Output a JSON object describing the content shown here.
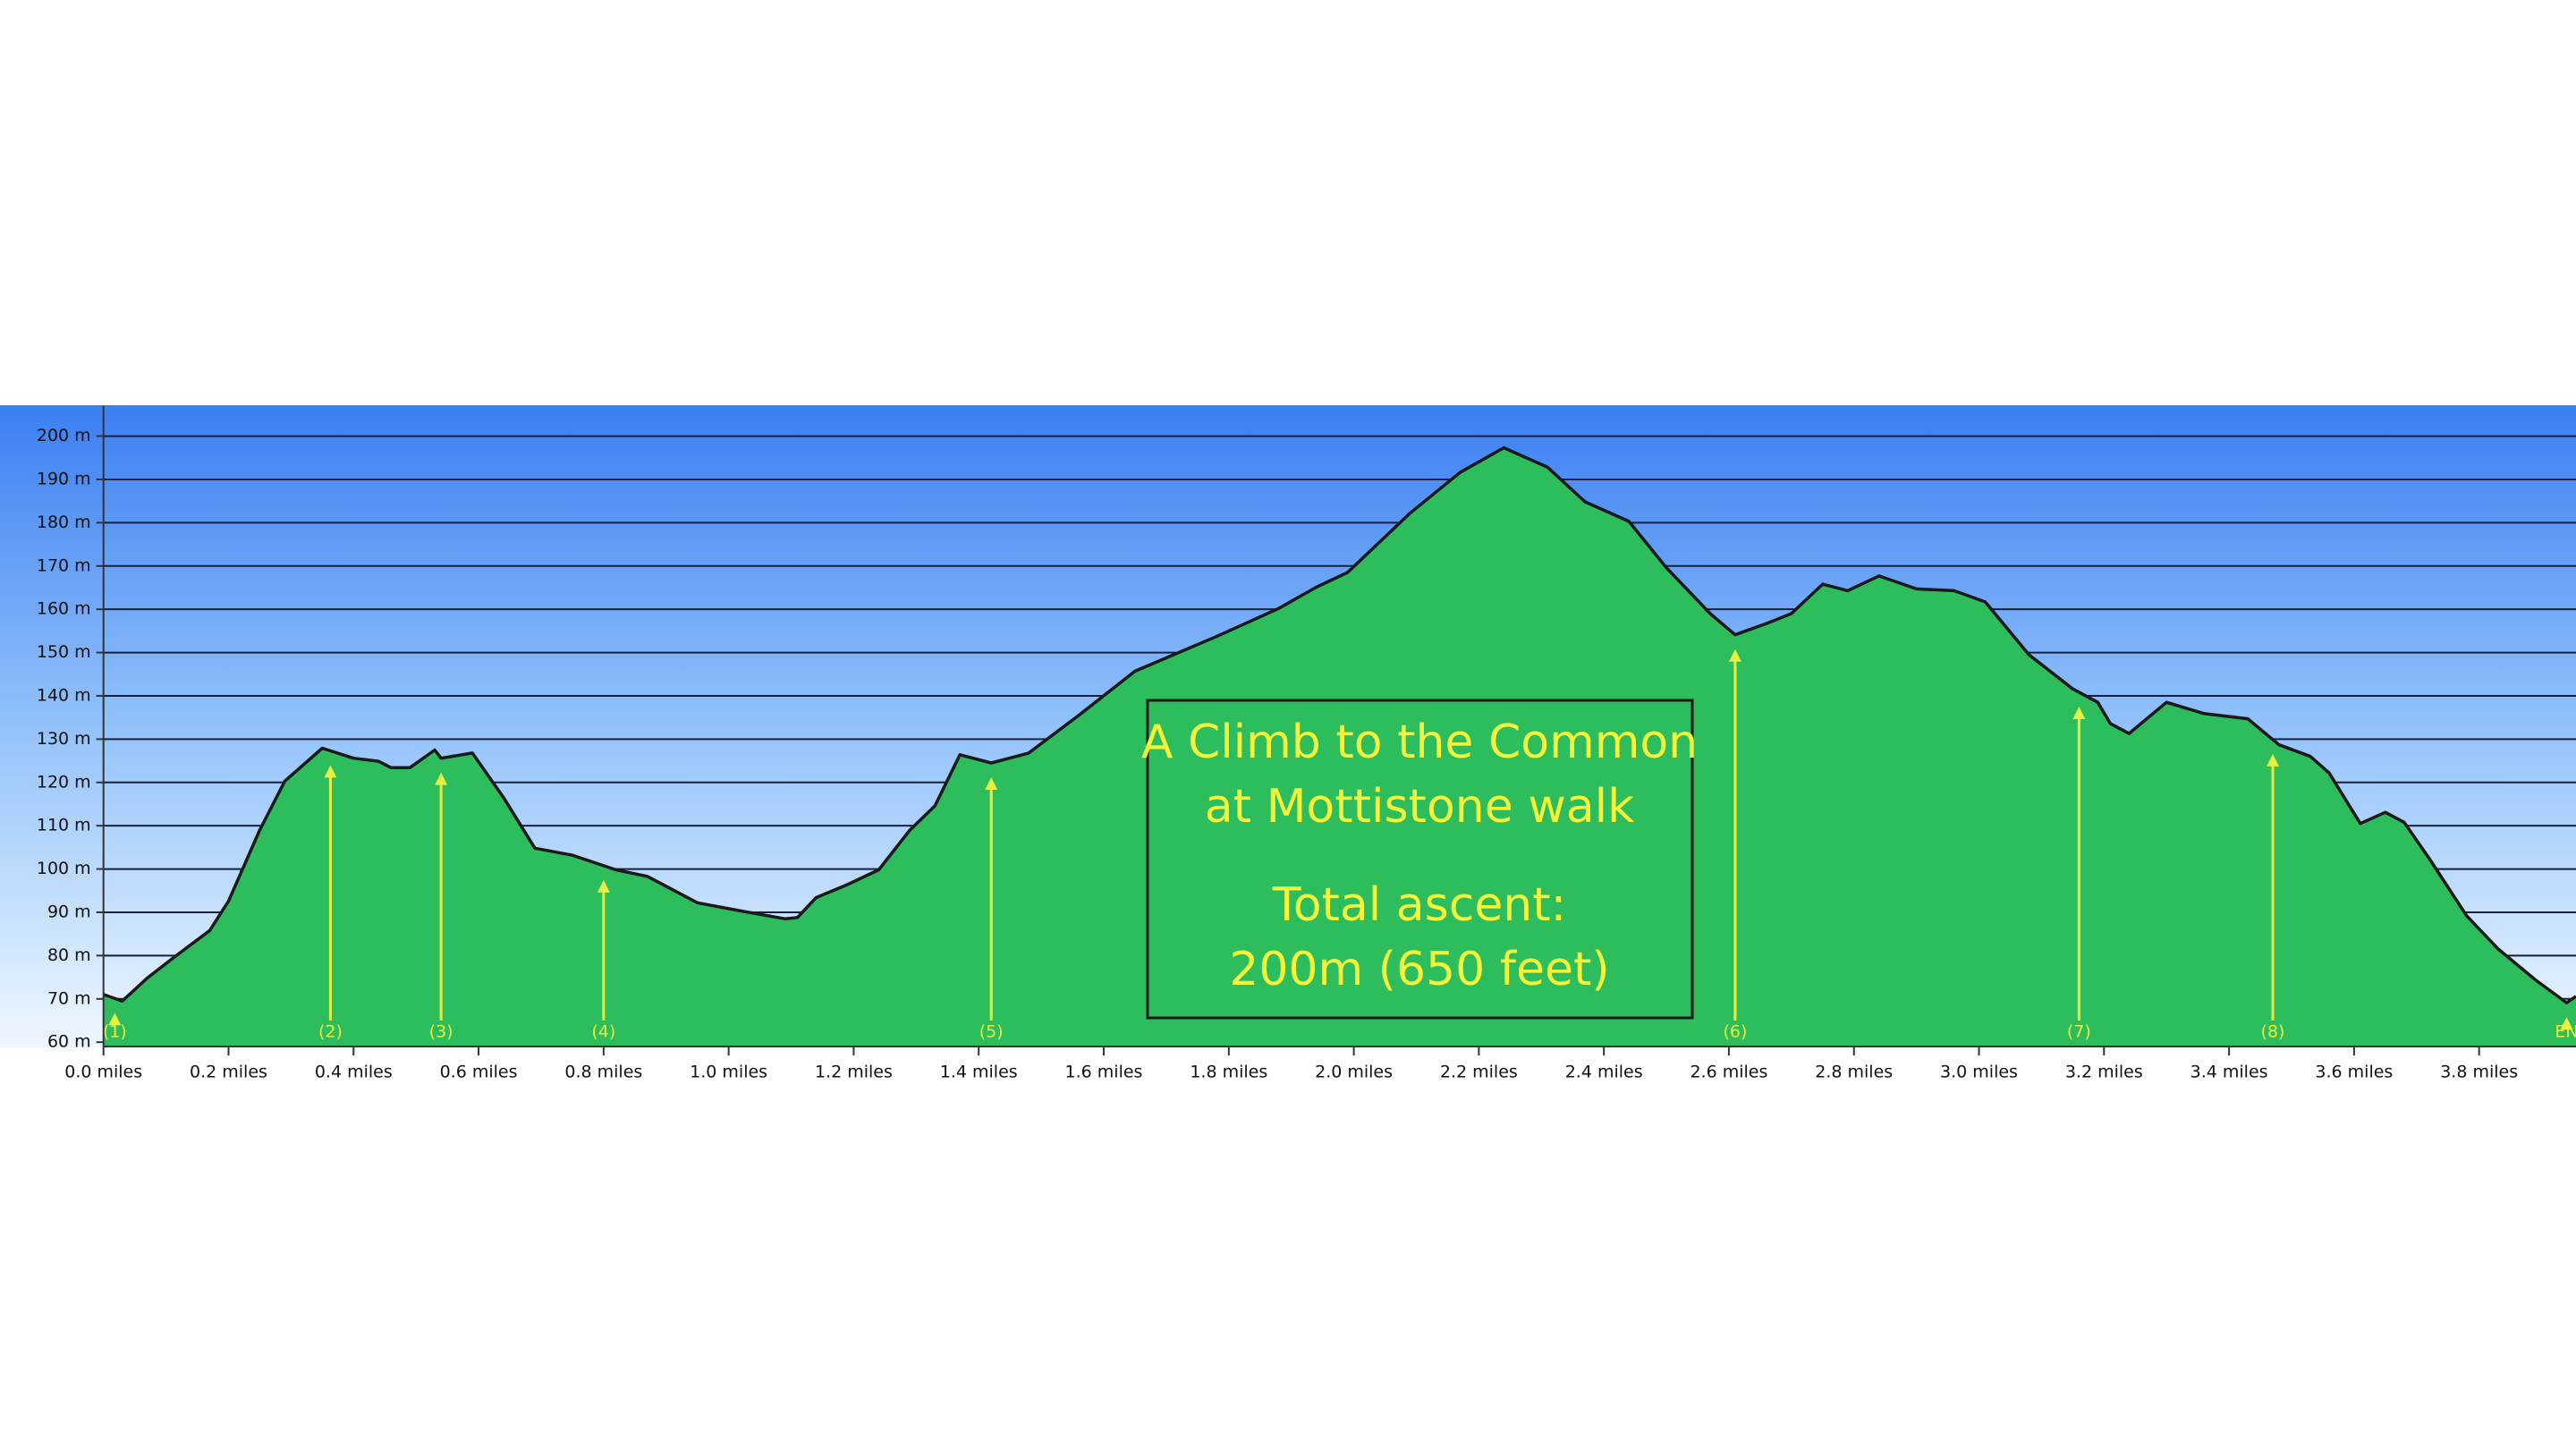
{
  "chart_data": {
    "type": "area",
    "color": "#2dbd5c",
    "line_color": "#1a1a1a",
    "marker_color": "#e8f040",
    "grid": true,
    "xlim": [
      0,
      3.955
    ],
    "ylim": [
      59,
      207
    ],
    "yticks": [
      {
        "value": 60,
        "label": "60 m"
      },
      {
        "value": 70,
        "label": "70 m"
      },
      {
        "value": 80,
        "label": "80 m"
      },
      {
        "value": 90,
        "label": "90 m"
      },
      {
        "value": 100,
        "label": "100 m"
      },
      {
        "value": 110,
        "label": "110 m"
      },
      {
        "value": 120,
        "label": "120 m"
      },
      {
        "value": 130,
        "label": "130 m"
      },
      {
        "value": 140,
        "label": "140 m"
      },
      {
        "value": 150,
        "label": "150 m"
      },
      {
        "value": 160,
        "label": "160 m"
      },
      {
        "value": 170,
        "label": "170 m"
      },
      {
        "value": 180,
        "label": "180 m"
      },
      {
        "value": 190,
        "label": "190 m"
      },
      {
        "value": 200,
        "label": "200 m"
      }
    ],
    "xticks": [
      {
        "value": 0,
        "label": "0.0 miles"
      },
      {
        "value": 0.2,
        "label": "0.2 miles"
      },
      {
        "value": 0.4,
        "label": "0.4 miles"
      },
      {
        "value": 0.6,
        "label": "0.6 miles"
      },
      {
        "value": 0.8,
        "label": "0.8 miles"
      },
      {
        "value": 1.0,
        "label": "1.0 miles"
      },
      {
        "value": 1.2,
        "label": "1.2 miles"
      },
      {
        "value": 1.4,
        "label": "1.4 miles"
      },
      {
        "value": 1.6,
        "label": "1.6 miles"
      },
      {
        "value": 1.8,
        "label": "1.8 miles"
      },
      {
        "value": 2.0,
        "label": "2.0 miles"
      },
      {
        "value": 2.2,
        "label": "2.2 miles"
      },
      {
        "value": 2.4,
        "label": "2.4 miles"
      },
      {
        "value": 2.6,
        "label": "2.6 miles"
      },
      {
        "value": 2.8,
        "label": "2.8 miles"
      },
      {
        "value": 3.0,
        "label": "3.0 miles"
      },
      {
        "value": 3.2,
        "label": "3.2 miles"
      },
      {
        "value": 3.4,
        "label": "3.4 miles"
      },
      {
        "value": 3.6,
        "label": "3.6 miles"
      },
      {
        "value": 3.8,
        "label": "3.8 miles"
      }
    ],
    "x": [
      0,
      0.03,
      0.07,
      0.11,
      0.17,
      0.2,
      0.25,
      0.29,
      0.35,
      0.4,
      0.44,
      0.46,
      0.49,
      0.53,
      0.54,
      0.59,
      0.64,
      0.69,
      0.75,
      0.82,
      0.87,
      0.95,
      1.02,
      1.09,
      1.11,
      1.14,
      1.19,
      1.24,
      1.29,
      1.33,
      1.37,
      1.42,
      1.48,
      1.56,
      1.65,
      1.78,
      1.88,
      1.94,
      1.99,
      2.09,
      2.17,
      2.24,
      2.31,
      2.37,
      2.44,
      2.5,
      2.57,
      2.61,
      2.66,
      2.7,
      2.75,
      2.79,
      2.84,
      2.9,
      2.96,
      3.01,
      3.08,
      3.15,
      3.19,
      3.21,
      3.24,
      3.3,
      3.36,
      3.43,
      3.48,
      3.53,
      3.56,
      3.61,
      3.65,
      3.68,
      3.72,
      3.78,
      3.83,
      3.89,
      3.94,
      3.955
    ],
    "values": [
      71,
      69.5,
      74.8,
      79.3,
      85.8,
      92.6,
      109,
      120.3,
      127.9,
      125.6,
      124.9,
      123.4,
      123.4,
      127.5,
      125.6,
      126.8,
      116.5,
      104.8,
      103.2,
      99.8,
      98.3,
      92.2,
      90.3,
      88.5,
      88.8,
      93.4,
      96.4,
      99.8,
      109,
      114.6,
      126.4,
      124.5,
      126.8,
      135.5,
      145.7,
      153.7,
      160.2,
      165.1,
      168.5,
      182.2,
      191.6,
      197.3,
      192.8,
      184.8,
      180.3,
      169.6,
      159,
      154.1,
      156.7,
      159,
      165.8,
      164.3,
      167.7,
      164.7,
      164.3,
      161.7,
      149.5,
      141.6,
      138.5,
      133.6,
      131.3,
      138.5,
      135.9,
      134.7,
      128.7,
      126,
      122.2,
      110.5,
      113.1,
      110.8,
      102.5,
      89.2,
      81.6,
      74.4,
      69.1,
      70.6
    ],
    "markers": [
      {
        "x": 0.018,
        "label": "(1)"
      },
      {
        "x": 0.363,
        "label": "(2)"
      },
      {
        "x": 0.54,
        "label": "(3)"
      },
      {
        "x": 0.8,
        "label": "(4)"
      },
      {
        "x": 1.42,
        "label": "(5)"
      },
      {
        "x": 2.61,
        "label": "(6)"
      },
      {
        "x": 3.16,
        "label": "(7)"
      },
      {
        "x": 3.47,
        "label": "(8)"
      },
      {
        "x": 3.94,
        "label": "EN"
      }
    ],
    "annotation": [
      "A Climb to the Common",
      "at Mottistone walk",
      "Total ascent:",
      "200m (650 feet)"
    ]
  }
}
